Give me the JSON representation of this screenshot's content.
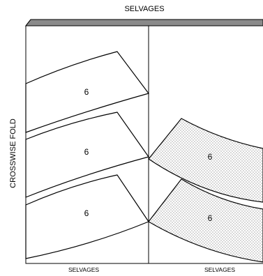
{
  "top_label": "SELVAGES",
  "left_label": "CROSSWISE FOLD",
  "bottom_labels": [
    "SELVAGES",
    "SELVAGES"
  ],
  "pieces": [
    {
      "label": "6",
      "shaded": false
    },
    {
      "label": "6",
      "shaded": false
    },
    {
      "label": "6",
      "shaded": false
    },
    {
      "label": "6",
      "shaded": true
    },
    {
      "label": "6",
      "shaded": true
    }
  ],
  "colors": {
    "line": "#000000",
    "bolt_edge": "#777777",
    "dot": "#444444"
  }
}
